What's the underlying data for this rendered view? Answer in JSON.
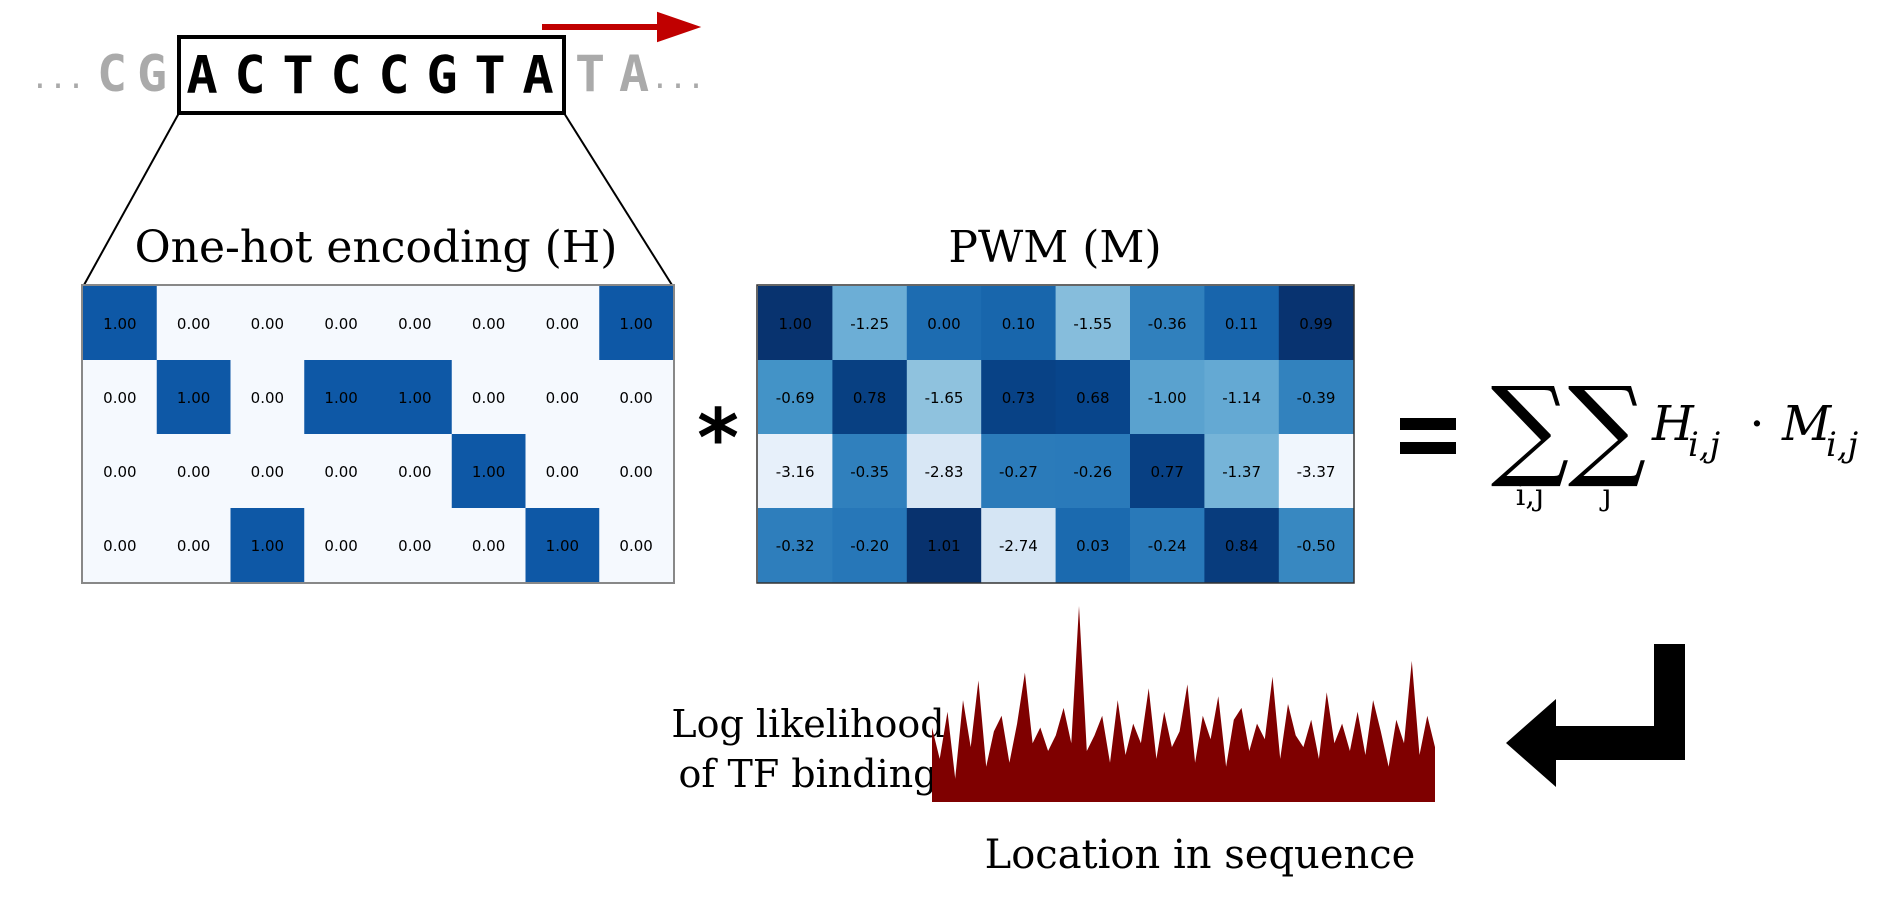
{
  "sequence": {
    "ellipsis_left": "...",
    "flank_left": [
      "C",
      "G"
    ],
    "motif": [
      "A",
      "C",
      "T",
      "C",
      "C",
      "G",
      "T",
      "A"
    ],
    "flank_right": [
      "T",
      "A"
    ],
    "ellipsis_right": "..."
  },
  "onehot": {
    "title": "One-hot encoding (H)",
    "rows": [
      [
        "1.00",
        "0.00",
        "0.00",
        "0.00",
        "0.00",
        "0.00",
        "0.00",
        "1.00"
      ],
      [
        "0.00",
        "1.00",
        "0.00",
        "1.00",
        "1.00",
        "0.00",
        "0.00",
        "0.00"
      ],
      [
        "0.00",
        "0.00",
        "0.00",
        "0.00",
        "0.00",
        "1.00",
        "0.00",
        "0.00"
      ],
      [
        "0.00",
        "0.00",
        "1.00",
        "0.00",
        "0.00",
        "0.00",
        "1.00",
        "0.00"
      ]
    ]
  },
  "operator_multiply": "*",
  "pwm": {
    "title": "PWM (M)",
    "rows": [
      [
        "1.00",
        "-1.25",
        "0.00",
        "0.10",
        "-1.55",
        "-0.36",
        "0.11",
        "0.99"
      ],
      [
        "-0.69",
        "0.78",
        "-1.65",
        "0.73",
        "0.68",
        "-1.00",
        "-1.14",
        "-0.39"
      ],
      [
        "-3.16",
        "-0.35",
        "-2.83",
        "-0.27",
        "-0.26",
        "0.77",
        "-1.37",
        "-3.37"
      ],
      [
        "-0.32",
        "-0.20",
        "1.01",
        "-2.74",
        "0.03",
        "-0.24",
        "0.84",
        "-0.50"
      ]
    ],
    "range": [
      -3.4,
      1.05
    ]
  },
  "operator_equals": "=",
  "formula": {
    "sum_symbol": "∑",
    "sub1": "i,j",
    "sub2": "j",
    "H": "H",
    "M": "M",
    "index": "i,j",
    "dot": "·"
  },
  "binding_plot": {
    "ylabel_line1": "Log likelihood",
    "ylabel_line2": "of TF binding",
    "xlabel": "Location in sequence",
    "fill_color": "#7f0000",
    "profile": [
      0.38,
      0.22,
      0.46,
      0.12,
      0.52,
      0.28,
      0.62,
      0.18,
      0.36,
      0.44,
      0.2,
      0.4,
      0.66,
      0.3,
      0.38,
      0.26,
      0.34,
      0.48,
      0.3,
      1.0,
      0.26,
      0.34,
      0.44,
      0.2,
      0.52,
      0.24,
      0.4,
      0.3,
      0.58,
      0.22,
      0.46,
      0.28,
      0.36,
      0.6,
      0.2,
      0.44,
      0.32,
      0.54,
      0.18,
      0.42,
      0.48,
      0.26,
      0.4,
      0.32,
      0.64,
      0.22,
      0.5,
      0.34,
      0.28,
      0.42,
      0.22,
      0.56,
      0.3,
      0.4,
      0.26,
      0.46,
      0.24,
      0.52,
      0.36,
      0.18,
      0.42,
      0.3,
      0.72,
      0.24,
      0.44,
      0.28
    ]
  },
  "colors": {
    "onehot_on": "#0e58a6",
    "onehot_off": "#f5f9fe",
    "arrow_red": "#c00000",
    "flank_gray": "#aaaaaa"
  }
}
